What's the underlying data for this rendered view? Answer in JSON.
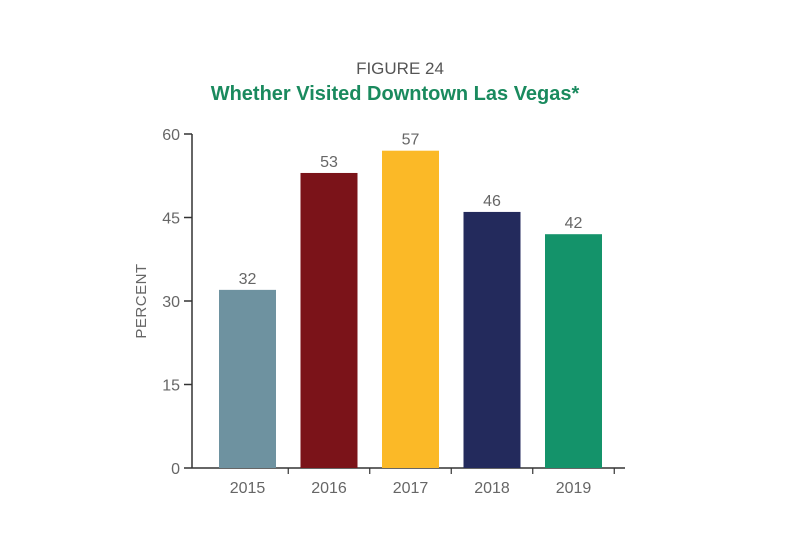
{
  "chart_data": {
    "type": "bar",
    "figure_label": "FIGURE 24",
    "title": "Whether Visited Downtown Las Vegas*",
    "xlabel": "",
    "ylabel": "PERCENT",
    "ylim": [
      0,
      60
    ],
    "yticks": [
      0,
      15,
      30,
      45,
      60
    ],
    "categories": [
      "2015",
      "2016",
      "2017",
      "2018",
      "2019"
    ],
    "values": [
      32,
      53,
      57,
      46,
      42
    ],
    "colors": [
      "#6e92a0",
      "#7b1319",
      "#fbb927",
      "#232a5c",
      "#14936a"
    ],
    "grid": false,
    "legend": "none"
  }
}
